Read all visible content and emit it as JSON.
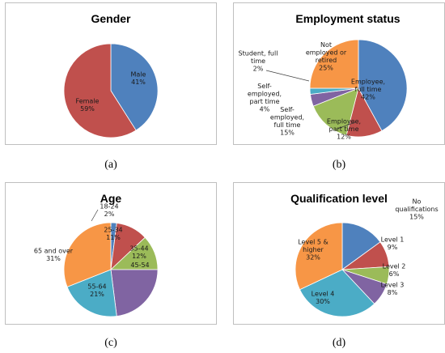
{
  "chart_data": [
    {
      "type": "pie",
      "title": "Gender",
      "caption": "(a)",
      "slices": [
        {
          "label_lines": [
            "Male",
            "41%"
          ],
          "value": 41,
          "color": "#4f81bd"
        },
        {
          "label_lines": [
            "Female",
            "59%"
          ],
          "value": 59,
          "color": "#c0504d"
        }
      ]
    },
    {
      "type": "pie",
      "title": "Employment status",
      "caption": "(b)",
      "slices": [
        {
          "label_lines": [
            "Employee,",
            "full time",
            "42%"
          ],
          "value": 42,
          "color": "#4f81bd"
        },
        {
          "label_lines": [
            "Employee,",
            "part time",
            "12%"
          ],
          "value": 12,
          "color": "#c0504d"
        },
        {
          "label_lines": [
            "Self-",
            "employed,",
            "full time",
            "15%"
          ],
          "value": 15,
          "color": "#9bbb59"
        },
        {
          "label_lines": [
            "Self-",
            "employed,",
            "part time",
            "4%"
          ],
          "value": 4,
          "color": "#8064a2"
        },
        {
          "label_lines": [
            "Student, full",
            "time",
            "2%"
          ],
          "value": 2,
          "color": "#4bacc6"
        },
        {
          "label_lines": [
            "Not",
            "employed or",
            "retired",
            "25%"
          ],
          "value": 25,
          "color": "#f79646"
        }
      ]
    },
    {
      "type": "pie",
      "title": "Age",
      "caption": "(c)",
      "slices": [
        {
          "label_lines": [
            "18-24",
            "2%"
          ],
          "value": 2,
          "color": "#4f81bd"
        },
        {
          "label_lines": [
            "25-34",
            "11%"
          ],
          "value": 11,
          "color": "#c0504d"
        },
        {
          "label_lines": [
            "35-44",
            "12%"
          ],
          "value": 12,
          "color": "#9bbb59"
        },
        {
          "label_lines": [
            "45-54"
          ],
          "value": 23,
          "color": "#8064a2"
        },
        {
          "label_lines": [
            "55-64",
            "21%"
          ],
          "value": 21,
          "color": "#4bacc6"
        },
        {
          "label_lines": [
            "65 and over",
            "31%"
          ],
          "value": 31,
          "color": "#f79646"
        }
      ]
    },
    {
      "type": "pie",
      "title": "Qualification level",
      "caption": "(d)",
      "slices": [
        {
          "label_lines": [
            "No",
            "qualifications",
            "15%"
          ],
          "value": 15,
          "color": "#4f81bd"
        },
        {
          "label_lines": [
            "Level 1",
            "9%"
          ],
          "value": 9,
          "color": "#c0504d"
        },
        {
          "label_lines": [
            "Level 2",
            "6%"
          ],
          "value": 6,
          "color": "#9bbb59"
        },
        {
          "label_lines": [
            "Level 3",
            "8%"
          ],
          "value": 8,
          "color": "#8064a2"
        },
        {
          "label_lines": [
            "Level 4",
            "30%"
          ],
          "value": 30,
          "color": "#4bacc6"
        },
        {
          "label_lines": [
            "Level 5 &",
            "higher",
            "32%"
          ],
          "value": 32,
          "color": "#f79646"
        }
      ]
    }
  ]
}
